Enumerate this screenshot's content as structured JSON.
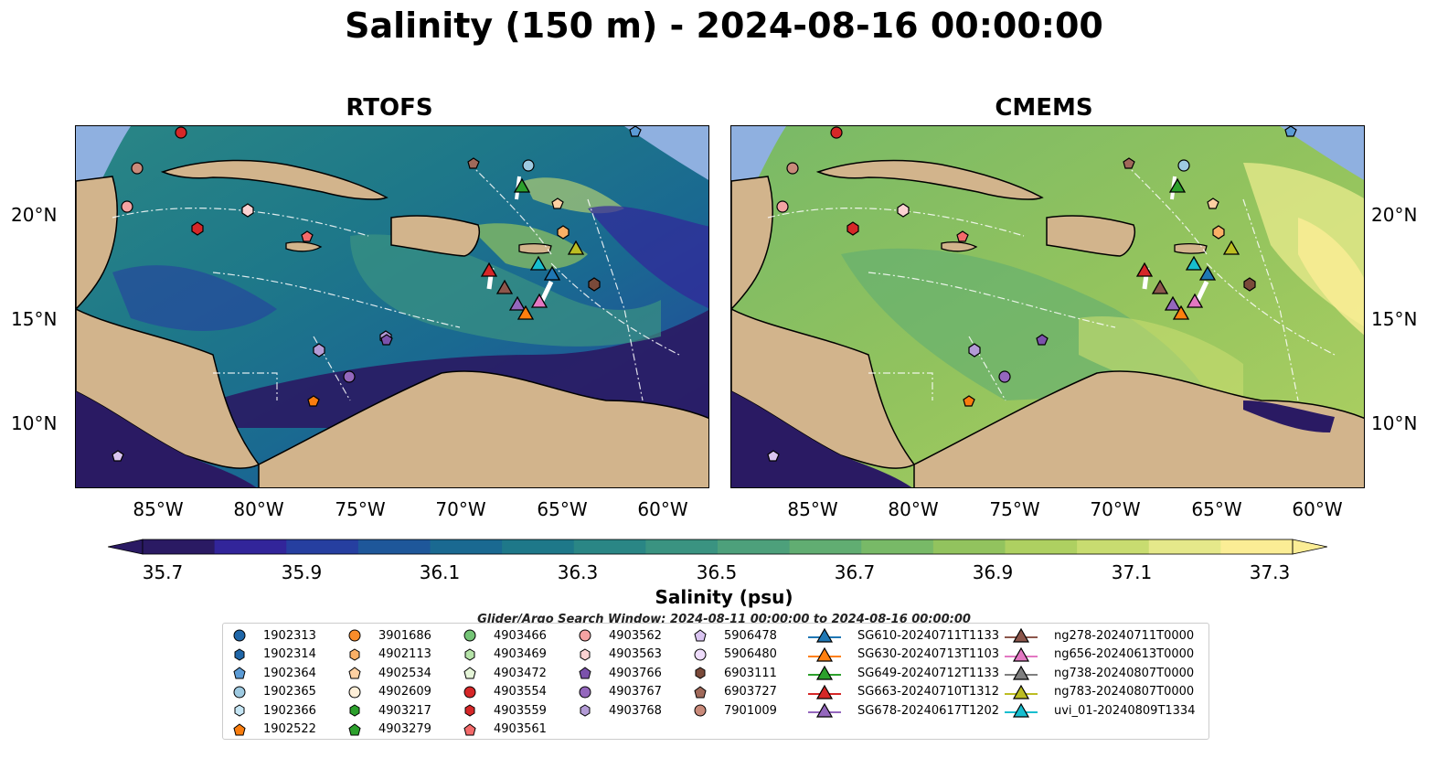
{
  "title": "Salinity (150 m) - 2024-08-16 00:00:00",
  "panels": [
    {
      "title": "RTOFS"
    },
    {
      "title": "CMEMS"
    }
  ],
  "lat_labels": [
    "20°N",
    "15°N",
    "10°N"
  ],
  "lon_labels": [
    "85°W",
    "80°W",
    "75°W",
    "70°W",
    "65°W",
    "60°W"
  ],
  "colorbar": {
    "label": "Salinity (psu)",
    "ticks": [
      "35.7",
      "35.9",
      "36.1",
      "36.3",
      "36.5",
      "36.7",
      "36.9",
      "37.1",
      "37.3"
    ],
    "colors": [
      "#2a1a63",
      "#32259a",
      "#263fa0",
      "#1e579a",
      "#1a6991",
      "#1e7889",
      "#2a8685",
      "#3a9381",
      "#4da07b",
      "#61ad72",
      "#78b967",
      "#92c35e",
      "#aed061",
      "#c8dc70",
      "#e5e88a",
      "#fbed95"
    ]
  },
  "search_window": "Glider/Argo Search Window: 2024-08-11 00:00:00 to 2024-08-16 00:00:00",
  "legend": {
    "columns": [
      [
        {
          "label": "1902313",
          "marker": "circle",
          "color": "#1f66a8"
        },
        {
          "label": "1902314",
          "marker": "hexagon",
          "color": "#1f66a8"
        },
        {
          "label": "1902364",
          "marker": "pentagon",
          "color": "#5b9bd5"
        },
        {
          "label": "1902365",
          "marker": "circle",
          "color": "#9ecae1"
        },
        {
          "label": "1902366",
          "marker": "hexagon",
          "color": "#c6e6f5"
        },
        {
          "label": "1902522",
          "marker": "pentagon",
          "color": "#f97d0e"
        }
      ],
      [
        {
          "label": "3901686",
          "marker": "circle",
          "color": "#f98c2a"
        },
        {
          "label": "4902113",
          "marker": "hexagon",
          "color": "#fbb066"
        },
        {
          "label": "4902534",
          "marker": "pentagon",
          "color": "#fdd0a2"
        },
        {
          "label": "4902609",
          "marker": "circle",
          "color": "#feefd8"
        },
        {
          "label": "4903217",
          "marker": "hexagon",
          "color": "#2ca02c"
        },
        {
          "label": "4903279",
          "marker": "pentagon",
          "color": "#2ca02c"
        }
      ],
      [
        {
          "label": "4903466",
          "marker": "circle",
          "color": "#74c476"
        },
        {
          "label": "4903469",
          "marker": "hexagon",
          "color": "#b5e3a8"
        },
        {
          "label": "4903472",
          "marker": "pentagon",
          "color": "#e5f5d8"
        },
        {
          "label": "4903554",
          "marker": "circle",
          "color": "#d62728"
        },
        {
          "label": "4903559",
          "marker": "hexagon",
          "color": "#d62728"
        },
        {
          "label": "4903561",
          "marker": "pentagon",
          "color": "#f36a6a"
        }
      ],
      [
        {
          "label": "4903562",
          "marker": "circle",
          "color": "#f4a3a3"
        },
        {
          "label": "4903563",
          "marker": "hexagon",
          "color": "#fbd2d2"
        },
        {
          "label": "4903766",
          "marker": "pentagon",
          "color": "#7b52ab"
        },
        {
          "label": "4903767",
          "marker": "circle",
          "color": "#9467bd"
        },
        {
          "label": "4903768",
          "marker": "hexagon",
          "color": "#b39bd6"
        }
      ],
      [
        {
          "label": "5906478",
          "marker": "pentagon",
          "color": "#d9c4f0"
        },
        {
          "label": "5906480",
          "marker": "circle",
          "color": "#eedcfb"
        },
        {
          "label": "6903111",
          "marker": "hexagon",
          "color": "#7a4a3a"
        },
        {
          "label": "6903727",
          "marker": "pentagon",
          "color": "#a0695a"
        },
        {
          "label": "7901009",
          "marker": "circle",
          "color": "#c98a7a"
        }
      ],
      [
        {
          "label": "SG610-20240711T1133",
          "marker": "triangle",
          "color": "#1f77b4"
        },
        {
          "label": "SG630-20240713T1103",
          "marker": "triangle",
          "color": "#ff7f0e"
        },
        {
          "label": "SG649-20240712T1133",
          "marker": "triangle",
          "color": "#2ca02c"
        },
        {
          "label": "SG663-20240710T1312",
          "marker": "triangle",
          "color": "#d62728"
        },
        {
          "label": "SG678-20240617T1202",
          "marker": "triangle",
          "color": "#9467bd"
        }
      ],
      [
        {
          "label": "ng278-20240711T0000",
          "marker": "triangle",
          "color": "#8c564b"
        },
        {
          "label": "ng656-20240613T0000",
          "marker": "triangle",
          "color": "#e377c2"
        },
        {
          "label": "ng738-20240807T0000",
          "marker": "triangle",
          "color": "#7f7f7f"
        },
        {
          "label": "ng783-20240807T0000",
          "marker": "triangle",
          "color": "#bcbd22"
        },
        {
          "label": "uvi_01-20240809T1334",
          "marker": "triangle",
          "color": "#17becf"
        }
      ]
    ]
  }
}
